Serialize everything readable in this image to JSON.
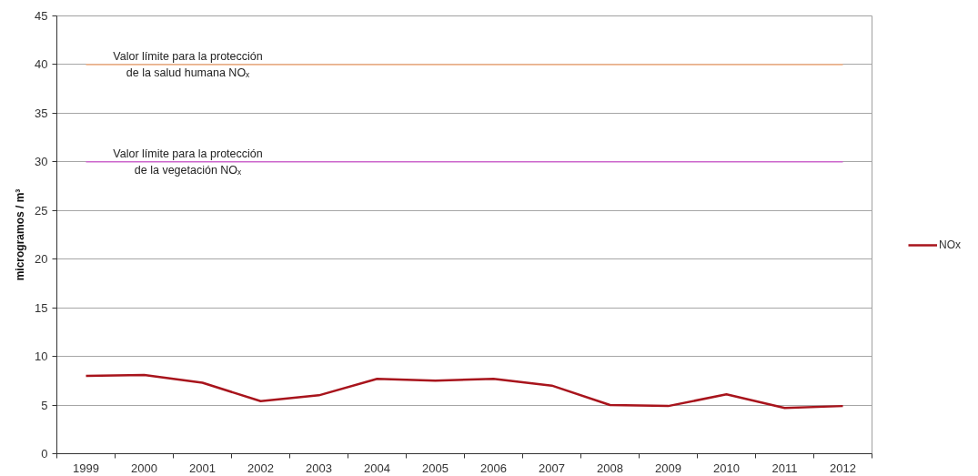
{
  "chart_data": {
    "type": "line",
    "ylabel": "microgramos / m³",
    "categories": [
      "1999",
      "2000",
      "2001",
      "2002",
      "2003",
      "2004",
      "2005",
      "2006",
      "2007",
      "2008",
      "2009",
      "2010",
      "2011",
      "2012"
    ],
    "series": [
      {
        "name": "NOx",
        "color": "#a8141c",
        "values": [
          8.0,
          8.1,
          7.3,
          5.4,
          6.0,
          7.7,
          7.5,
          7.7,
          7.0,
          5.0,
          4.9,
          6.1,
          4.7,
          4.9
        ]
      }
    ],
    "ylim": [
      0,
      45
    ],
    "yticks": [
      0,
      5,
      10,
      15,
      20,
      25,
      30,
      35,
      40,
      45
    ],
    "grid": "y",
    "legend": "right",
    "marker": "none",
    "line_style": "solid",
    "ref_lines": [
      {
        "axis": "y",
        "value": 40,
        "label": "Valor límite para la protección\nde la salud humana NOₓ",
        "color": "#f4b183"
      },
      {
        "axis": "y",
        "value": 30,
        "label": "Valor límite para la protección\nde la vegetación NOₓ",
        "color": "#cc66cc"
      }
    ]
  }
}
